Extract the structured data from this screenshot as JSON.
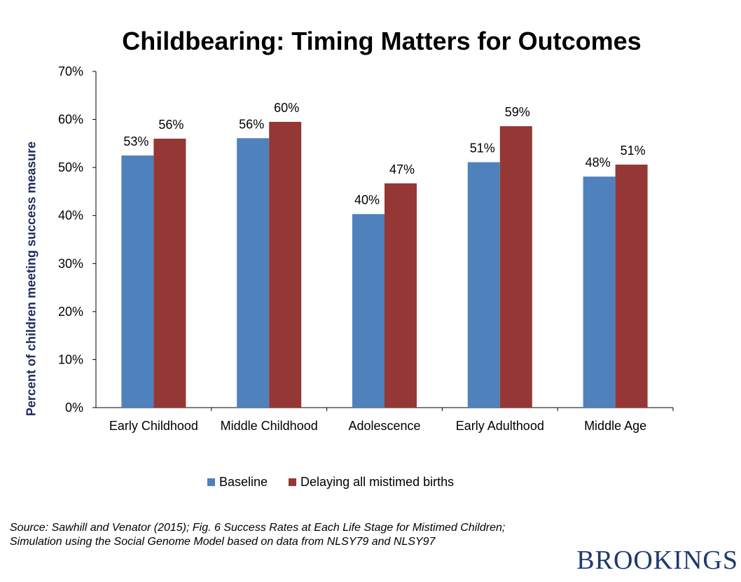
{
  "chart_data": {
    "type": "bar",
    "title": "Childbearing: Timing Matters for Outcomes",
    "xlabel": "",
    "ylabel": "Percent of children meeting success measure",
    "categories": [
      "Early Childhood",
      "Middle Childhood",
      "Adolescence",
      "Early Adulthood",
      "Middle Age"
    ],
    "series": [
      {
        "name": "Baseline",
        "color": "#4f81bd",
        "values": [
          52.5,
          56.1,
          40.3,
          51.1,
          48.1
        ],
        "labels": [
          "53%",
          "56%",
          "40%",
          "51%",
          "48%"
        ]
      },
      {
        "name": "Delaying all mistimed births",
        "color": "#953735",
        "values": [
          56.0,
          59.5,
          46.7,
          58.6,
          50.6
        ],
        "labels": [
          "56%",
          "60%",
          "47%",
          "59%",
          "51%"
        ]
      }
    ],
    "ylim": [
      0,
      70
    ],
    "yticks": [
      "0%",
      "10%",
      "20%",
      "30%",
      "40%",
      "50%",
      "60%",
      "70%"
    ],
    "ytick_values": [
      0,
      10,
      20,
      30,
      40,
      50,
      60,
      70
    ],
    "grid": false,
    "legend_position": "bottom"
  },
  "source": "Source: Sawhill and Venator (2015); Fig. 6 Success Rates at Each Life Stage for Mistimed Children; Simulation using the  Social Genome Model based on data from NLSY79 and NLSY97",
  "brand": "BROOKINGS"
}
